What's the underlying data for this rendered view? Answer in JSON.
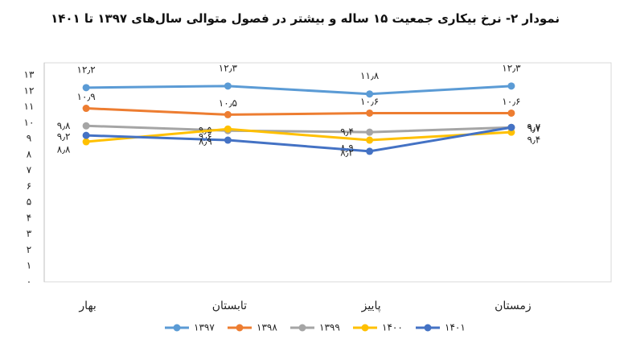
{
  "chart_data": {
    "type": "line",
    "title": "نمودار ۲-  نرخ بیکاری جمعیت ۱۵ ساله و بیشتر در فصول متوالی سال‌های ۱۳۹۷ تا ۱۴۰۱",
    "categories": [
      "بهار",
      "تابستان",
      "پاییز",
      "زمستان"
    ],
    "series": [
      {
        "name": "۱۳۹۷",
        "color": "#5b9bd5",
        "values": [
          12.2,
          12.3,
          11.8,
          12.3
        ],
        "value_labels": [
          "۱۲٫۲",
          "۱۲٫۳",
          "۱۱٫۸",
          "۱۲٫۳"
        ]
      },
      {
        "name": "۱۳۹۸",
        "color": "#ed7d31",
        "values": [
          10.9,
          10.5,
          10.6,
          10.6
        ],
        "value_labels": [
          "۱۰٫۹",
          "۱۰٫۵",
          "۱۰٫۶",
          "۱۰٫۶"
        ]
      },
      {
        "name": "۱۳۹۹",
        "color": "#a5a5a5",
        "values": [
          9.8,
          9.5,
          9.4,
          9.7
        ],
        "value_labels": [
          "۹٫۸",
          "۹٫۵",
          "۹٫۴",
          "۹٫۷"
        ]
      },
      {
        "name": "۱۴۰۰",
        "color": "#ffc000",
        "values": [
          8.8,
          9.6,
          8.9,
          9.4
        ],
        "value_labels": [
          "۸٫۸",
          "۹٫۶",
          "۸٫۹",
          "۹٫۴"
        ]
      },
      {
        "name": "۱۴۰۱",
        "color": "#4472c4",
        "values": [
          9.2,
          8.9,
          8.2,
          9.7
        ],
        "value_labels": [
          "۹٫۲",
          "۸٫۹",
          "۸٫۲",
          "۹٫۷"
        ]
      }
    ],
    "ylim": [
      0,
      13
    ],
    "yticks": [
      {
        "value": 0,
        "label": "۰"
      },
      {
        "value": 1,
        "label": "۱"
      },
      {
        "value": 2,
        "label": "۲"
      },
      {
        "value": 3,
        "label": "۳"
      },
      {
        "value": 4,
        "label": "۴"
      },
      {
        "value": 5,
        "label": "۵"
      },
      {
        "value": 6,
        "label": "۶"
      },
      {
        "value": 7,
        "label": "۷"
      },
      {
        "value": 8,
        "label": "۸"
      },
      {
        "value": 9,
        "label": "۹"
      },
      {
        "value": 10,
        "label": "۱۰"
      },
      {
        "value": 11,
        "label": "۱۱"
      },
      {
        "value": 12,
        "label": "۱۲"
      },
      {
        "value": 13,
        "label": "۱۳"
      }
    ],
    "grid": false,
    "legend": "bottom"
  }
}
